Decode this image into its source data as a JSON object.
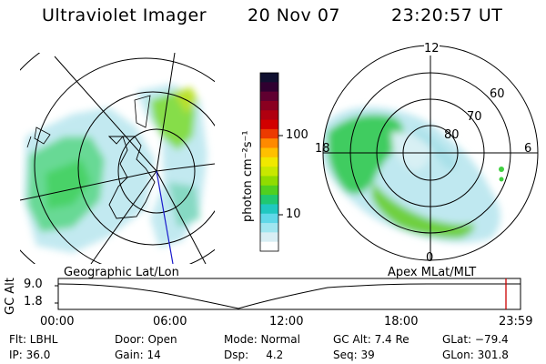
{
  "header": {
    "instrument": "Ultraviolet Imager",
    "date": "20 Nov 07",
    "time": "23:20:57 UT"
  },
  "colorbar": {
    "unit_label": "photon cm⁻²s⁻¹",
    "tick_labels": [
      "100",
      "10"
    ],
    "colors": [
      "#101030",
      "#300030",
      "#600030",
      "#8a0020",
      "#b00010",
      "#d20000",
      "#ec3a00",
      "#ff8a00",
      "#ffc000",
      "#f0e800",
      "#c8e800",
      "#90dc00",
      "#50d020",
      "#20c870",
      "#20c8c0",
      "#60d8e8",
      "#a0e6f0",
      "#d8eef4",
      "#ffffff"
    ]
  },
  "left_map": {
    "caption": "Geographic Lat/Lon"
  },
  "right_map": {
    "caption": "Apex MLat/MLT",
    "lat_labels": [
      "60",
      "70",
      "80"
    ],
    "mlt_labels": {
      "top": "12",
      "left": "18",
      "right": "6",
      "bottom": "0"
    }
  },
  "altitude_plot": {
    "ylabel": "GC Alt",
    "ytick_top": "9.0",
    "ytick_bottom": "1.8",
    "xticks": [
      "00:00",
      "06:00",
      "12:00",
      "18:00",
      "23:59"
    ],
    "current_marker_color": "#cc0000"
  },
  "footer": {
    "filter": "Flt: LBHL",
    "door": "Door: Open",
    "mode": "Mode: Normal",
    "gc_alt": "GC Alt: 7.4 Re",
    "glat": "GLat: −79.4",
    "ip": "IP: 36.0",
    "gain": "Gain: 14",
    "dsp": "Dsp:     4.2",
    "seq": "Seq: 39",
    "glon": "GLon: 301.8"
  }
}
